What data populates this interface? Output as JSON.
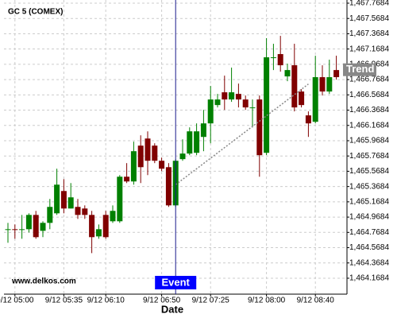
{
  "chart_data": {
    "type": "candlestick",
    "title": "GC 5 (COMEX)",
    "x_label": "Date",
    "watermark": "www.delkos.com",
    "categories": [
      null,
      "9/12 05:00",
      null,
      null,
      null,
      null,
      null,
      null,
      "9/12 05:35",
      null,
      null,
      null,
      null,
      null,
      "9/12 06:10",
      null,
      null,
      null,
      null,
      null,
      null,
      null,
      "9/12 06:50",
      null,
      null,
      null,
      null,
      null,
      null,
      "9/12 07:25",
      null,
      null,
      null,
      null,
      null,
      null,
      null,
      "9/12 08:00",
      null,
      null,
      null,
      null,
      null,
      null,
      "9/12 08:40",
      null,
      null,
      null
    ],
    "open": [
      1464.81,
      1464.81,
      1464.81,
      1464.81,
      1464.997,
      1464.789,
      1464.893,
      1465.018,
      1465.31,
      1465.081,
      1465.102,
      1465.081,
      1464.997,
      1464.716,
      1464.997,
      1464.914,
      1464.914,
      1465.497,
      1465.435,
      1465.904,
      1465.997,
      1465.904,
      1465.706,
      1465.622,
      1465.122,
      1465.727,
      1465.8,
      1465.81,
      1466.018,
      1466.195,
      1466.435,
      1466.602,
      1466.508,
      1466.581,
      1466.508,
      1466.404,
      1466.508,
      1465.81,
      1467.06,
      1467.102,
      1466.81,
      1466.956,
      1466.612,
      1466.3,
      1466.216,
      1466.8,
      1466.612,
      1466.893
    ],
    "high": [
      1464.893,
      1464.872,
      1464.997,
      1465.018,
      1465.05,
      1464.914,
      1465.206,
      1465.602,
      1465.466,
      1465.414,
      1465.206,
      1465.122,
      1465.05,
      1464.872,
      1465.05,
      1465.122,
      1465.518,
      1465.675,
      1465.956,
      1466.039,
      1466.091,
      1465.935,
      1465.747,
      1465.675,
      1465.727,
      1465.987,
      1466.143,
      1466.195,
      1466.372,
      1466.685,
      1466.581,
      1466.82,
      1466.925,
      1466.716,
      1466.56,
      1466.508,
      1466.56,
      1467.31,
      1467.237,
      1467.341,
      1466.977,
      1467.237,
      1466.643,
      1466.352,
      1467.081,
      1466.956,
      1467.029,
      1467.081
    ],
    "low": [
      1464.633,
      1464.685,
      1464.685,
      1464.768,
      1464.685,
      1464.706,
      1464.81,
      1464.997,
      1465.018,
      1465.081,
      1464.945,
      1464.945,
      1464.497,
      1464.685,
      1464.685,
      1464.893,
      1464.893,
      1465.414,
      1465.393,
      1465.414,
      1465.518,
      1465.675,
      1465.57,
      1465.102,
      1465.102,
      1465.706,
      1465.779,
      1465.779,
      1465.831,
      1465.935,
      1466.404,
      1466.372,
      1466.477,
      1466.404,
      1466.372,
      1466.143,
      1465.497,
      1465.779,
      1466.893,
      1466.872,
      1466.747,
      1466.352,
      1466.404,
      1466.018,
      1466.195,
      1466.56,
      1466.581,
      1466.768
    ],
    "close": [
      1464.81,
      1464.8,
      1464.81,
      1464.997,
      1464.706,
      1464.893,
      1465.102,
      1465.393,
      1465.081,
      1465.227,
      1464.997,
      1464.997,
      1464.706,
      1464.81,
      1464.706,
      1465.05,
      1465.497,
      1465.435,
      1465.831,
      1465.622,
      1465.706,
      1465.706,
      1465.602,
      1465.122,
      1465.706,
      1465.8,
      1466.091,
      1466.091,
      1466.195,
      1466.508,
      1466.508,
      1466.508,
      1466.602,
      1466.508,
      1466.404,
      1466.404,
      1465.779,
      1467.06,
      1467.06,
      1466.956,
      1466.893,
      1466.404,
      1466.435,
      1466.195,
      1466.8,
      1466.612,
      1466.8,
      1466.8
    ],
    "up_color": "#008000",
    "down_color": "#800000",
    "ylim": [
      1463.96,
      1467.81
    ],
    "yticks": [
      {
        "value": 1467.7684,
        "label": "1,467.7684"
      },
      {
        "value": 1467.5684,
        "label": "1,467.5684"
      },
      {
        "value": 1467.3684,
        "label": "1,467.3684"
      },
      {
        "value": 1467.1684,
        "label": "1,467.1684"
      },
      {
        "value": 1466.9684,
        "label": "1,466.9684"
      },
      {
        "value": 1466.7684,
        "label": "1,466.7684"
      },
      {
        "value": 1466.5684,
        "label": "1,466.5684"
      },
      {
        "value": 1466.3684,
        "label": "1,466.3684"
      },
      {
        "value": 1466.1684,
        "label": "1,466.1684"
      },
      {
        "value": 1465.9684,
        "label": "1,465.9684"
      },
      {
        "value": 1465.7684,
        "label": "1,465.7684"
      },
      {
        "value": 1465.5684,
        "label": "1,465.5684"
      },
      {
        "value": 1465.3684,
        "label": "1,465.3684"
      },
      {
        "value": 1465.1684,
        "label": "1,465.1684"
      },
      {
        "value": 1464.9684,
        "label": "1,464.9684"
      },
      {
        "value": 1464.7684,
        "label": "1,464.7684"
      },
      {
        "value": 1464.5684,
        "label": "1,464.5684"
      },
      {
        "value": 1464.3684,
        "label": "1,464.3684"
      },
      {
        "value": 1464.1684,
        "label": "1,464.1684"
      }
    ],
    "grid": true,
    "event": {
      "label": "Event",
      "index": 24
    },
    "trend": {
      "label": "Trend",
      "from": {
        "index": 24,
        "value": 1465.393
      },
      "to": {
        "index": 43,
        "value": 1466.71
      }
    }
  }
}
